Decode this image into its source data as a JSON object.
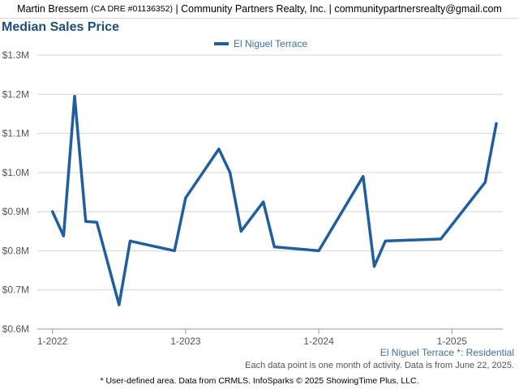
{
  "header": {
    "agent": "Martin Bressem",
    "dre": "(CA DRE #01136352)",
    "rest": "| Community Partners Realty, Inc. | communitypartnersrealty@gmail.com"
  },
  "colors": {
    "line": "#1f5fa0",
    "grid": "#d4d4d4",
    "title": "#1f4e79"
  },
  "chart_data": {
    "type": "line",
    "title": "Median Sales Price",
    "legend_position": "top-center",
    "grid": true,
    "ylim": [
      600000,
      1300000
    ],
    "yticks": [
      {
        "value": 600000,
        "label": "$0.6M"
      },
      {
        "value": 700000,
        "label": "$0.7M"
      },
      {
        "value": 800000,
        "label": "$0.8M"
      },
      {
        "value": 900000,
        "label": "$0.9M"
      },
      {
        "value": 1000000,
        "label": "$1.0M"
      },
      {
        "value": 1100000,
        "label": "$1.1M"
      },
      {
        "value": 1200000,
        "label": "$1.2M"
      },
      {
        "value": 1300000,
        "label": "$1.3M"
      }
    ],
    "xlim": [
      "2021-12",
      "2025-05"
    ],
    "xticks": [
      {
        "value": "2022-01",
        "label": "1-2022"
      },
      {
        "value": "2023-01",
        "label": "1-2023"
      },
      {
        "value": "2024-01",
        "label": "1-2024"
      },
      {
        "value": "2025-01",
        "label": "1-2025"
      }
    ],
    "series": [
      {
        "name": "El Niguel Terrace",
        "points": [
          {
            "x": "2022-01",
            "y": 900000
          },
          {
            "x": "2022-02",
            "y": 838000
          },
          {
            "x": "2022-03",
            "y": 1195000
          },
          {
            "x": "2022-04",
            "y": 875000
          },
          {
            "x": "2022-05",
            "y": 873000
          },
          {
            "x": "2022-07",
            "y": 662000
          },
          {
            "x": "2022-08",
            "y": 825000
          },
          {
            "x": "2022-12",
            "y": 800000
          },
          {
            "x": "2023-01",
            "y": 935000
          },
          {
            "x": "2023-04",
            "y": 1060000
          },
          {
            "x": "2023-05",
            "y": 1000000
          },
          {
            "x": "2023-06",
            "y": 850000
          },
          {
            "x": "2023-08",
            "y": 925000
          },
          {
            "x": "2023-09",
            "y": 810000
          },
          {
            "x": "2024-01",
            "y": 800000
          },
          {
            "x": "2024-05",
            "y": 990000
          },
          {
            "x": "2024-06",
            "y": 760000
          },
          {
            "x": "2024-07",
            "y": 825000
          },
          {
            "x": "2024-12",
            "y": 830000
          },
          {
            "x": "2025-04",
            "y": 975000
          },
          {
            "x": "2025-05",
            "y": 1125000
          }
        ]
      }
    ]
  },
  "subtitle_note": "El Niguel Terrace *: Residential",
  "data_note": "Each data point is one month of activity. Data is from June 22, 2025.",
  "footer_note": "* User-defined area. Data from CRMLS. InfoSparks © 2025 ShowingTime Plus, LLC."
}
